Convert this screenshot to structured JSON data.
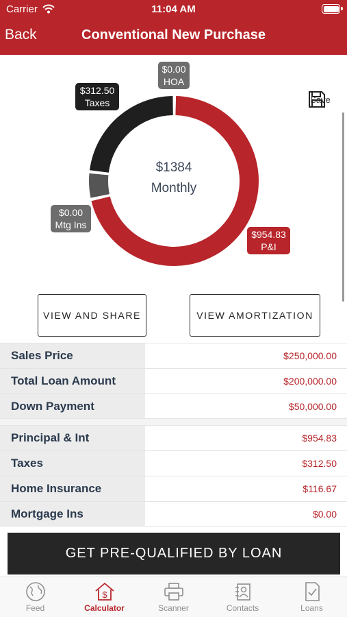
{
  "status_bar": {
    "carrier": "Carrier",
    "time": "11:04 AM"
  },
  "nav": {
    "back_label": "Back",
    "title": "Conventional New Purchase"
  },
  "chart": {
    "center_amount": "$1384",
    "center_label": "Monthly",
    "save_label": "Save"
  },
  "chart_data": {
    "type": "pie",
    "labels": [
      "P&I",
      "Mtg Ins",
      "Taxes",
      "HOA"
    ],
    "values": [
      954.83,
      0.0,
      312.5,
      0.0
    ],
    "value_labels": [
      "$954.83",
      "$0.00",
      "$312.50",
      "$0.00"
    ],
    "colors": [
      "#b8252a",
      "#555555",
      "#1f1f1f",
      "#6d6d6d"
    ]
  },
  "buttons": {
    "view_share": "VIEW AND SHARE",
    "view_amortization": "VIEW AMORTIZATION"
  },
  "summary_rows": [
    {
      "label": "Sales Price",
      "value": "$250,000.00"
    },
    {
      "label": "Total Loan Amount",
      "value": "$200,000.00"
    },
    {
      "label": "Down Payment",
      "value": "$50,000.00"
    }
  ],
  "payment_rows": [
    {
      "label": "Principal & Int",
      "value": "$954.83"
    },
    {
      "label": "Taxes",
      "value": "$312.50"
    },
    {
      "label": "Home Insurance",
      "value": "$116.67"
    },
    {
      "label": "Mortgage Ins",
      "value": "$0.00"
    }
  ],
  "cta": {
    "label": "GET PRE-QUALIFIED BY LOAN"
  },
  "tabs": [
    {
      "label": "Feed",
      "icon": "globe-icon"
    },
    {
      "label": "Calculator",
      "icon": "house-dollar-icon",
      "active": true
    },
    {
      "label": "Scanner",
      "icon": "printer-icon"
    },
    {
      "label": "Contacts",
      "icon": "contacts-icon"
    },
    {
      "label": "Loans",
      "icon": "document-check-icon"
    }
  ],
  "colors": {
    "brand": "#b8252a",
    "dark": "#262626"
  }
}
